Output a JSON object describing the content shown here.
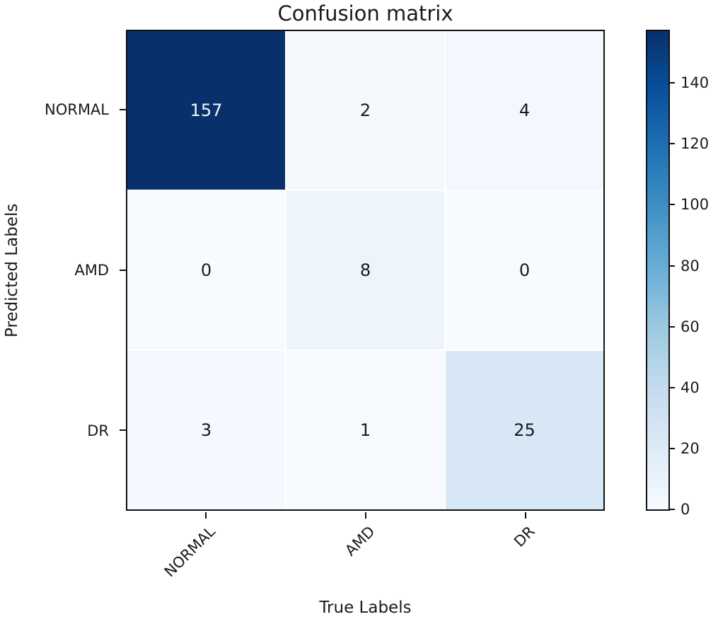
{
  "chart_data": {
    "type": "heatmap",
    "title": "Confusion matrix",
    "xlabel": "True Labels",
    "ylabel": "Predicted Labels",
    "row_labels": [
      "NORMAL",
      "AMD",
      "DR"
    ],
    "col_labels": [
      "NORMAL",
      "AMD",
      "DR"
    ],
    "matrix": [
      [
        157,
        2,
        4
      ],
      [
        0,
        8,
        0
      ],
      [
        3,
        1,
        25
      ]
    ],
    "vmin": 0,
    "vmax": 157,
    "colormap": "Blues",
    "colorbar_ticks": [
      0,
      20,
      40,
      60,
      80,
      100,
      120,
      140
    ],
    "legend_position": "right-colorbar",
    "grid": false,
    "xticklabel_rotation_deg": 45,
    "colors": {
      "cmap_min": "#f7fbff",
      "cmap_max": "#08306b",
      "axis": "#111111",
      "text": "#1a1a1a",
      "cell_text_light": "#f5f8fc"
    }
  }
}
